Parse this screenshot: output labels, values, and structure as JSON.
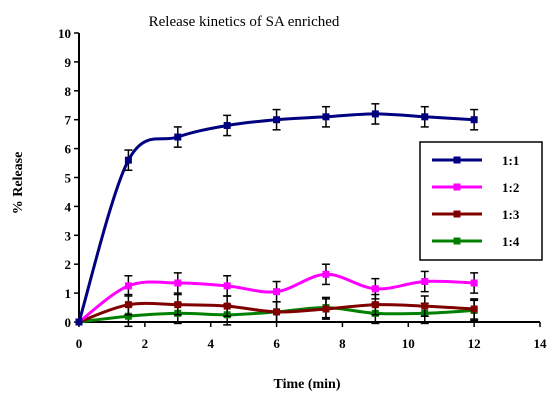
{
  "chart_data": {
    "type": "line",
    "title": "Release kinetics of SA enriched",
    "xlabel": "Time (min)",
    "ylabel": "% Release",
    "xlim": [
      0,
      14
    ],
    "ylim": [
      0,
      10
    ],
    "xticks": [
      0,
      2,
      4,
      6,
      8,
      10,
      12,
      14
    ],
    "yticks": [
      0,
      1,
      2,
      3,
      4,
      5,
      6,
      7,
      8,
      9,
      10
    ],
    "xtick_labels": [
      "0",
      "2",
      "4",
      "6",
      "8",
      "10",
      "12",
      "14"
    ],
    "ytick_labels": [
      "0",
      "1",
      "2",
      "3",
      "4",
      "5",
      "6",
      "7",
      "8",
      "9",
      "10"
    ],
    "grid": false,
    "legend_position": "right",
    "x": [
      0,
      1.5,
      3,
      4.5,
      6,
      7.5,
      9,
      10.5,
      12
    ],
    "series": [
      {
        "name": "1:1",
        "color": "#000080",
        "values": [
          0,
          5.6,
          6.4,
          6.8,
          7.0,
          7.1,
          7.2,
          7.1,
          7.0
        ],
        "errors": [
          0,
          0.35,
          0.35,
          0.35,
          0.35,
          0.35,
          0.35,
          0.35,
          0.35
        ]
      },
      {
        "name": "1:2",
        "color": "#ff00ff",
        "values": [
          0,
          1.25,
          1.35,
          1.25,
          1.05,
          1.65,
          1.15,
          1.4,
          1.35
        ],
        "errors": [
          0,
          0.35,
          0.35,
          0.35,
          0.35,
          0.35,
          0.35,
          0.35,
          0.35
        ]
      },
      {
        "name": "1:3",
        "color": "#800000",
        "values": [
          0,
          0.6,
          0.6,
          0.55,
          0.35,
          0.45,
          0.6,
          0.55,
          0.45
        ],
        "errors": [
          0,
          0.35,
          0.35,
          0.35,
          0.35,
          0.35,
          0.35,
          0.35,
          0.35
        ]
      },
      {
        "name": "1:4",
        "color": "#008000",
        "values": [
          0,
          0.2,
          0.3,
          0.25,
          0.35,
          0.5,
          0.3,
          0.3,
          0.4
        ],
        "errors": [
          0,
          0.35,
          0.35,
          0.35,
          0.35,
          0.35,
          0.35,
          0.35,
          0.35
        ]
      }
    ]
  }
}
